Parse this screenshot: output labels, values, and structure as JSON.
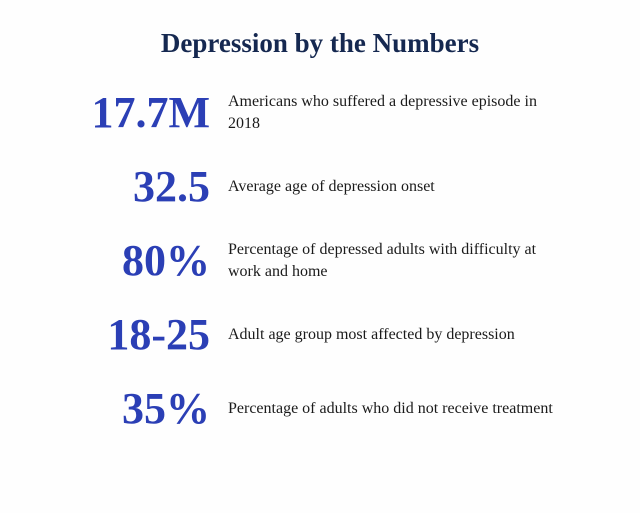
{
  "type": "infographic",
  "background_color": "#fefefe",
  "title": {
    "text": "Depression by the Numbers",
    "color": "#152850",
    "fontsize": 27,
    "fontweight": "bold",
    "font_family": "Georgia, serif"
  },
  "stat_value_style": {
    "color": "#2b3fb5",
    "fontsize": 44,
    "fontweight": "bold",
    "font_family": "Georgia, serif",
    "text_align": "right",
    "width": 180
  },
  "stat_description_style": {
    "color": "#1a1a1a",
    "fontsize": 16,
    "font_family": "Georgia, serif"
  },
  "stats": [
    {
      "value": "17.7M",
      "description": "Americans who suffered a depressive episode in 2018"
    },
    {
      "value": "32.5",
      "description": "Average age of depression onset"
    },
    {
      "value": "80%",
      "description": "Percentage of depressed adults with difficulty at work and home"
    },
    {
      "value": "18-25",
      "description": "Adult age group most affected by depression"
    },
    {
      "value": "35%",
      "description": "Percentage of adults who did not receive treatment"
    }
  ]
}
